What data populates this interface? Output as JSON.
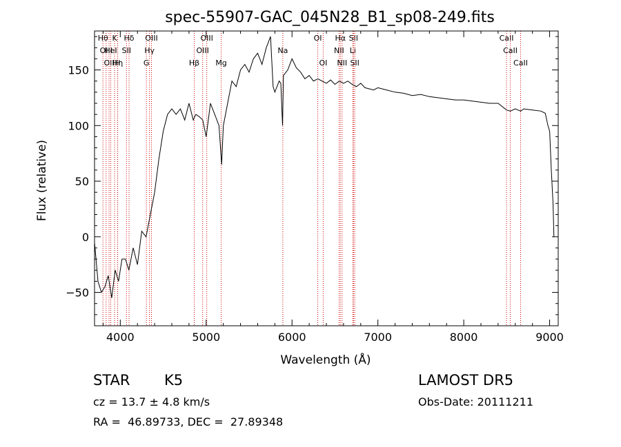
{
  "chart_data": {
    "type": "line",
    "title": "spec-55907-GAC_045N28_B1_sp08-249.fits",
    "xlabel": "Wavelength (Å)",
    "ylabel": "Flux (relative)",
    "xlim": [
      3700,
      9100
    ],
    "ylim": [
      -80,
      185
    ],
    "xticks": [
      4000,
      5000,
      6000,
      7000,
      8000,
      9000
    ],
    "yticks": [
      -50,
      0,
      50,
      100,
      150
    ],
    "grid": false,
    "line_color": "#000000",
    "marker_color": "#cc0000",
    "series": [
      {
        "x": [
          3700,
          3740,
          3780,
          3820,
          3860,
          3900,
          3940,
          3980,
          4020,
          4060,
          4100,
          4150,
          4200,
          4250,
          4300,
          4350,
          4400,
          4450,
          4500,
          4550,
          4600,
          4650,
          4700,
          4750,
          4800,
          4850,
          4880,
          4920,
          4960,
          5000,
          5050,
          5100,
          5150,
          5180,
          5200,
          5250,
          5300,
          5350,
          5400,
          5450,
          5500,
          5550,
          5600,
          5650,
          5700,
          5750,
          5780,
          5800,
          5850,
          5870,
          5890,
          5900,
          5950,
          6000,
          6050,
          6100,
          6150,
          6200,
          6250,
          6300,
          6350,
          6400,
          6450,
          6500,
          6550,
          6600,
          6650,
          6700,
          6750,
          6800,
          6850,
          6900,
          6950,
          7000,
          7100,
          7200,
          7300,
          7400,
          7500,
          7600,
          7700,
          7800,
          7900,
          8000,
          8100,
          8200,
          8300,
          8400,
          8498,
          8542,
          8600,
          8662,
          8700,
          8800,
          8900,
          8950,
          8980,
          9000,
          9020,
          9040,
          9050
        ],
        "y": [
          -5,
          -40,
          -50,
          -45,
          -35,
          -55,
          -30,
          -40,
          -20,
          -20,
          -30,
          -10,
          -25,
          5,
          0,
          20,
          40,
          70,
          95,
          110,
          115,
          110,
          115,
          105,
          120,
          105,
          110,
          108,
          105,
          90,
          120,
          110,
          100,
          65,
          100,
          120,
          140,
          135,
          150,
          155,
          148,
          160,
          165,
          155,
          170,
          180,
          135,
          130,
          140,
          138,
          100,
          145,
          150,
          160,
          152,
          148,
          142,
          145,
          140,
          142,
          140,
          138,
          141,
          137,
          140,
          138,
          140,
          137,
          135,
          138,
          134,
          133,
          132,
          134,
          132,
          130,
          129,
          127,
          128,
          126,
          125,
          124,
          123,
          123,
          122,
          121,
          120,
          120,
          114,
          113,
          115,
          113,
          115,
          114,
          113,
          111,
          100,
          95,
          60,
          30,
          0
        ]
      }
    ],
    "line_markers": [
      {
        "wl": 3798,
        "label": "Hθ",
        "row": 0
      },
      {
        "wl": 3835,
        "label": "OIII",
        "row": 1
      },
      {
        "wl": 3869,
        "label": "OII",
        "row": 2
      },
      {
        "wl": 3889,
        "label": "HeI",
        "row": 1
      },
      {
        "wl": 3934,
        "label": "K",
        "row": 0
      },
      {
        "wl": 3970,
        "label": "Hη",
        "row": 2
      },
      {
        "wl": 3968,
        "label": "H",
        "row": 2
      },
      {
        "wl": 4072,
        "label": "SII",
        "row": 1
      },
      {
        "wl": 4102,
        "label": "Hδ",
        "row": 0
      },
      {
        "wl": 4304,
        "label": "G",
        "row": 2
      },
      {
        "wl": 4340,
        "label": "Hγ",
        "row": 1
      },
      {
        "wl": 4363,
        "label": "OIII",
        "row": 0
      },
      {
        "wl": 4861,
        "label": "Hβ",
        "row": 2
      },
      {
        "wl": 4959,
        "label": "OIII",
        "row": 1
      },
      {
        "wl": 5007,
        "label": "OIII",
        "row": 0
      },
      {
        "wl": 5175,
        "label": "Mg",
        "row": 2
      },
      {
        "wl": 5893,
        "label": "Na",
        "row": 1
      },
      {
        "wl": 6300,
        "label": "OI",
        "row": 0
      },
      {
        "wl": 6363,
        "label": "OI",
        "row": 2
      },
      {
        "wl": 6548,
        "label": "NII",
        "row": 1
      },
      {
        "wl": 6563,
        "label": "Hα",
        "row": 0
      },
      {
        "wl": 6583,
        "label": "NII",
        "row": 2
      },
      {
        "wl": 6708,
        "label": "Li",
        "row": 1
      },
      {
        "wl": 6716,
        "label": "SII",
        "row": 0
      },
      {
        "wl": 6731,
        "label": "SII",
        "row": 2
      },
      {
        "wl": 8498,
        "label": "CaII",
        "row": 0
      },
      {
        "wl": 8542,
        "label": "CaII",
        "row": 1
      },
      {
        "wl": 8662,
        "label": "CaII",
        "row": 2
      }
    ]
  },
  "info": {
    "class_label": "STAR",
    "subclass": "K5",
    "survey": "LAMOST DR5",
    "cz": "cz = 13.7 ± 4.8 km/s",
    "obs_date": "Obs-Date: 20111211",
    "coords": "RA =  46.89733, DEC =  27.89348"
  }
}
